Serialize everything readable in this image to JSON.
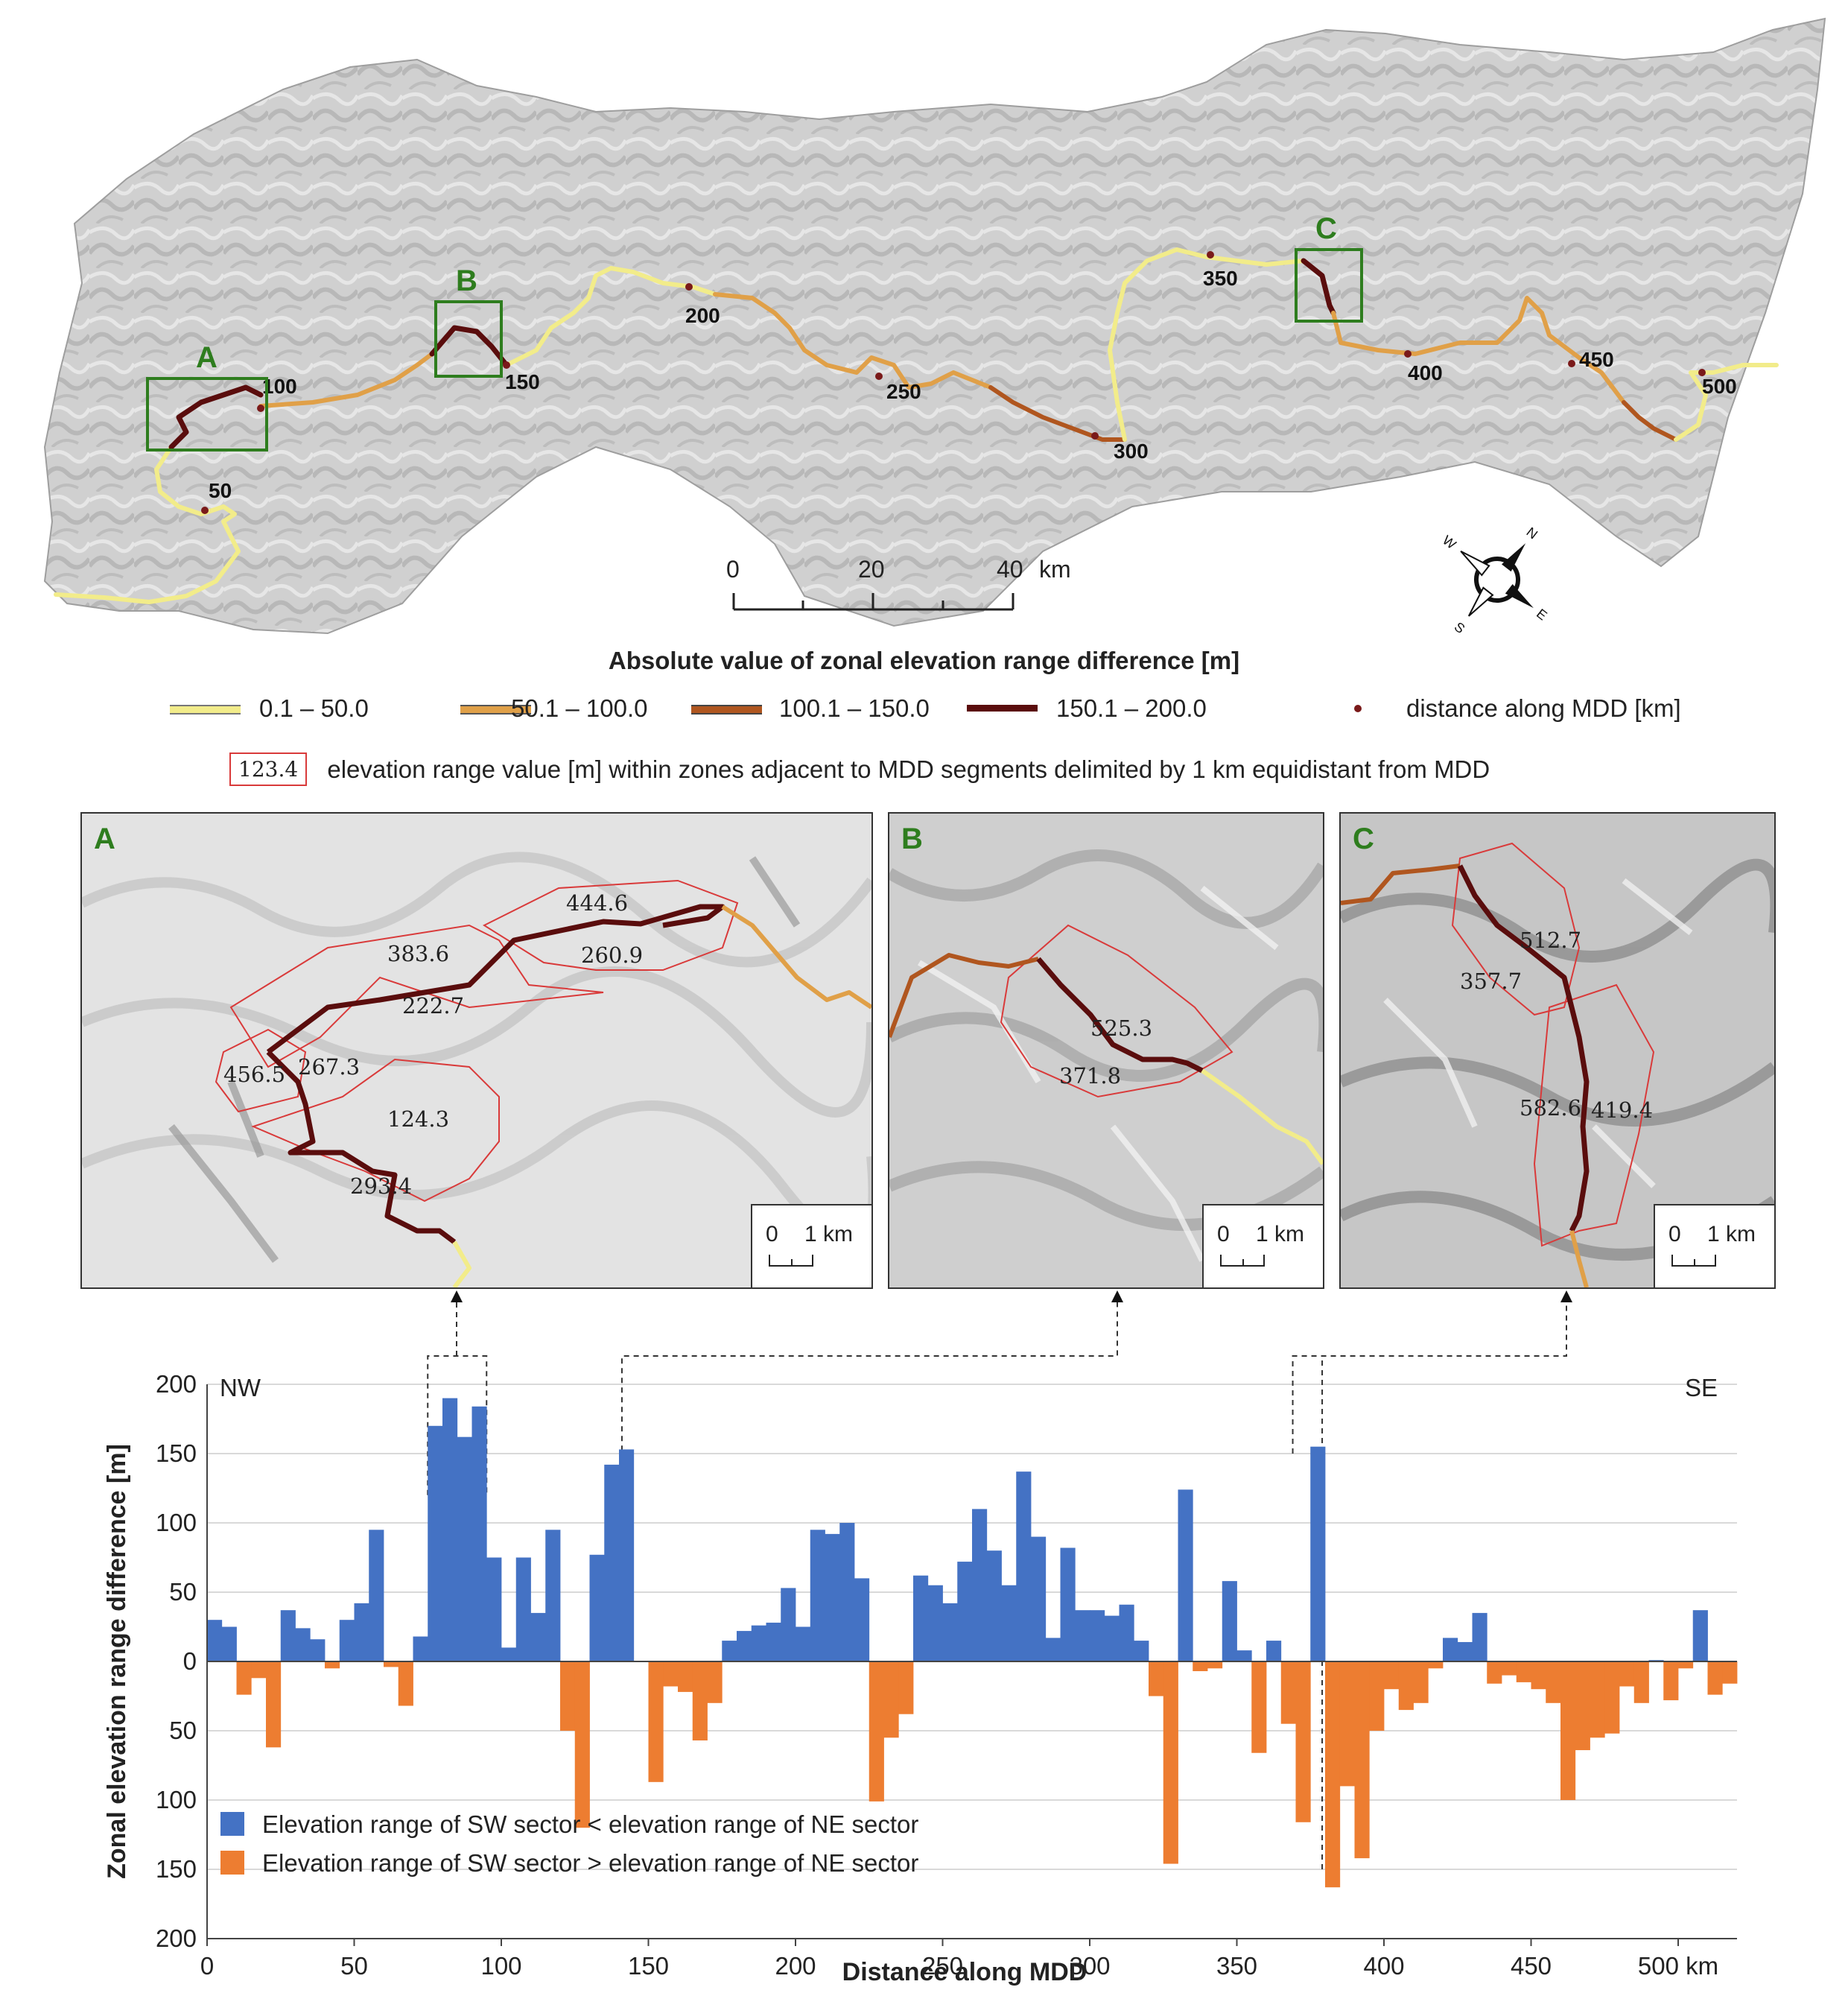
{
  "overview_map": {
    "box_labels": [
      "A",
      "B",
      "C"
    ],
    "distance_labels": [
      "50",
      "100",
      "150",
      "200",
      "250",
      "300",
      "350",
      "400",
      "450",
      "500"
    ],
    "scale_bar": {
      "labels": [
        "0",
        "20",
        "40"
      ],
      "unit": "km"
    },
    "compass": {
      "N": "N",
      "E": "E",
      "S": "S",
      "W": "W",
      "icon": "compass-rose-icon"
    }
  },
  "legend": {
    "title": "Absolute value of zonal elevation range difference [m]",
    "classes": [
      {
        "label": "0.1 –  50.0",
        "color": "#f2ec8a"
      },
      {
        "label": "50.1 – 100.0",
        "color": "#e0a048"
      },
      {
        "label": "100.1 – 150.0",
        "color": "#b0561f"
      },
      {
        "label": "150.1 –  200.0",
        "color": "#5a0d0d"
      }
    ],
    "point_label": "distance along MDD [km]",
    "sample_value": "123.4",
    "sample_text": "elevation range value [m] within zones adjacent to MDD segments delimited by 1 km equidistant from MDD"
  },
  "insets": [
    {
      "letter": "A",
      "values": [
        "444.6",
        "383.6",
        "260.9",
        "222.7",
        "456.5",
        "267.3",
        "124.3",
        "293.4"
      ],
      "scale": {
        "zero": "0",
        "one": "1 km"
      }
    },
    {
      "letter": "B",
      "values": [
        "525.3",
        "371.8"
      ],
      "scale": {
        "zero": "0",
        "one": "1 km"
      }
    },
    {
      "letter": "C",
      "values": [
        "512.7",
        "357.7",
        "582.6",
        "419.4"
      ],
      "scale": {
        "zero": "0",
        "one": "1 km"
      }
    }
  ],
  "chart_data": {
    "type": "bar",
    "xlabel": "Distance along MDD",
    "ylabel": "Zonal elevation range difference [m]",
    "x_unit": "km",
    "xlim": [
      0,
      520
    ],
    "ylim": [
      -200,
      200
    ],
    "x_ticks": [
      "0",
      "50",
      "100",
      "150",
      "200",
      "250",
      "300",
      "350",
      "400",
      "450",
      "500"
    ],
    "y_ticks": [
      "200",
      "150",
      "100",
      "50",
      "0",
      "50",
      "100",
      "150",
      "200"
    ],
    "corner_labels": {
      "left": "NW",
      "right": "SE"
    },
    "grid": true,
    "legend_position": "bottom-left",
    "series": [
      {
        "name": "Elevation range of SW sector < elevation range of NE sector",
        "color": "#4472c4"
      },
      {
        "name": "Elevation range of SW sector > elevation range of NE sector",
        "color": "#ed7d31"
      }
    ],
    "bin_width_km": 5,
    "x": [
      0,
      5,
      10,
      15,
      20,
      25,
      30,
      35,
      40,
      45,
      50,
      55,
      60,
      65,
      70,
      75,
      80,
      85,
      90,
      95,
      100,
      105,
      110,
      115,
      120,
      125,
      130,
      135,
      140,
      145,
      150,
      155,
      160,
      165,
      170,
      175,
      180,
      185,
      190,
      195,
      200,
      205,
      210,
      215,
      220,
      225,
      230,
      235,
      240,
      245,
      250,
      255,
      260,
      265,
      270,
      275,
      280,
      285,
      290,
      295,
      300,
      305,
      310,
      315,
      320,
      325,
      330,
      335,
      340,
      345,
      350,
      355,
      360,
      365,
      370,
      375,
      380,
      385,
      390,
      395,
      400,
      405,
      410,
      415,
      420,
      425,
      430,
      435,
      440,
      445,
      450,
      455,
      460,
      465,
      470,
      475,
      480,
      485,
      490,
      495,
      500,
      505,
      510,
      515
    ],
    "values": [
      30,
      25,
      -24,
      -12,
      -62,
      37,
      24,
      16,
      -5,
      30,
      42,
      95,
      -4,
      -32,
      18,
      170,
      190,
      162,
      184,
      75,
      10,
      75,
      35,
      95,
      -50,
      -120,
      77,
      142,
      153,
      0,
      -87,
      -18,
      -22,
      -57,
      -30,
      15,
      22,
      26,
      28,
      53,
      25,
      95,
      92,
      100,
      60,
      -101,
      -55,
      -38,
      62,
      55,
      42,
      72,
      110,
      80,
      55,
      137,
      90,
      17,
      82,
      37,
      37,
      33,
      41,
      15,
      -25,
      -146,
      124,
      -7,
      -5,
      58,
      8,
      -66,
      15,
      -45,
      -116,
      155,
      -163,
      -90,
      -142,
      -50,
      -20,
      -35,
      -30,
      -5,
      17,
      14,
      35,
      -16,
      -10,
      -15,
      -20,
      -30,
      -100,
      -64,
      -55,
      -52,
      -18,
      -30,
      1,
      -28,
      -5,
      37,
      -24,
      -16
    ]
  }
}
